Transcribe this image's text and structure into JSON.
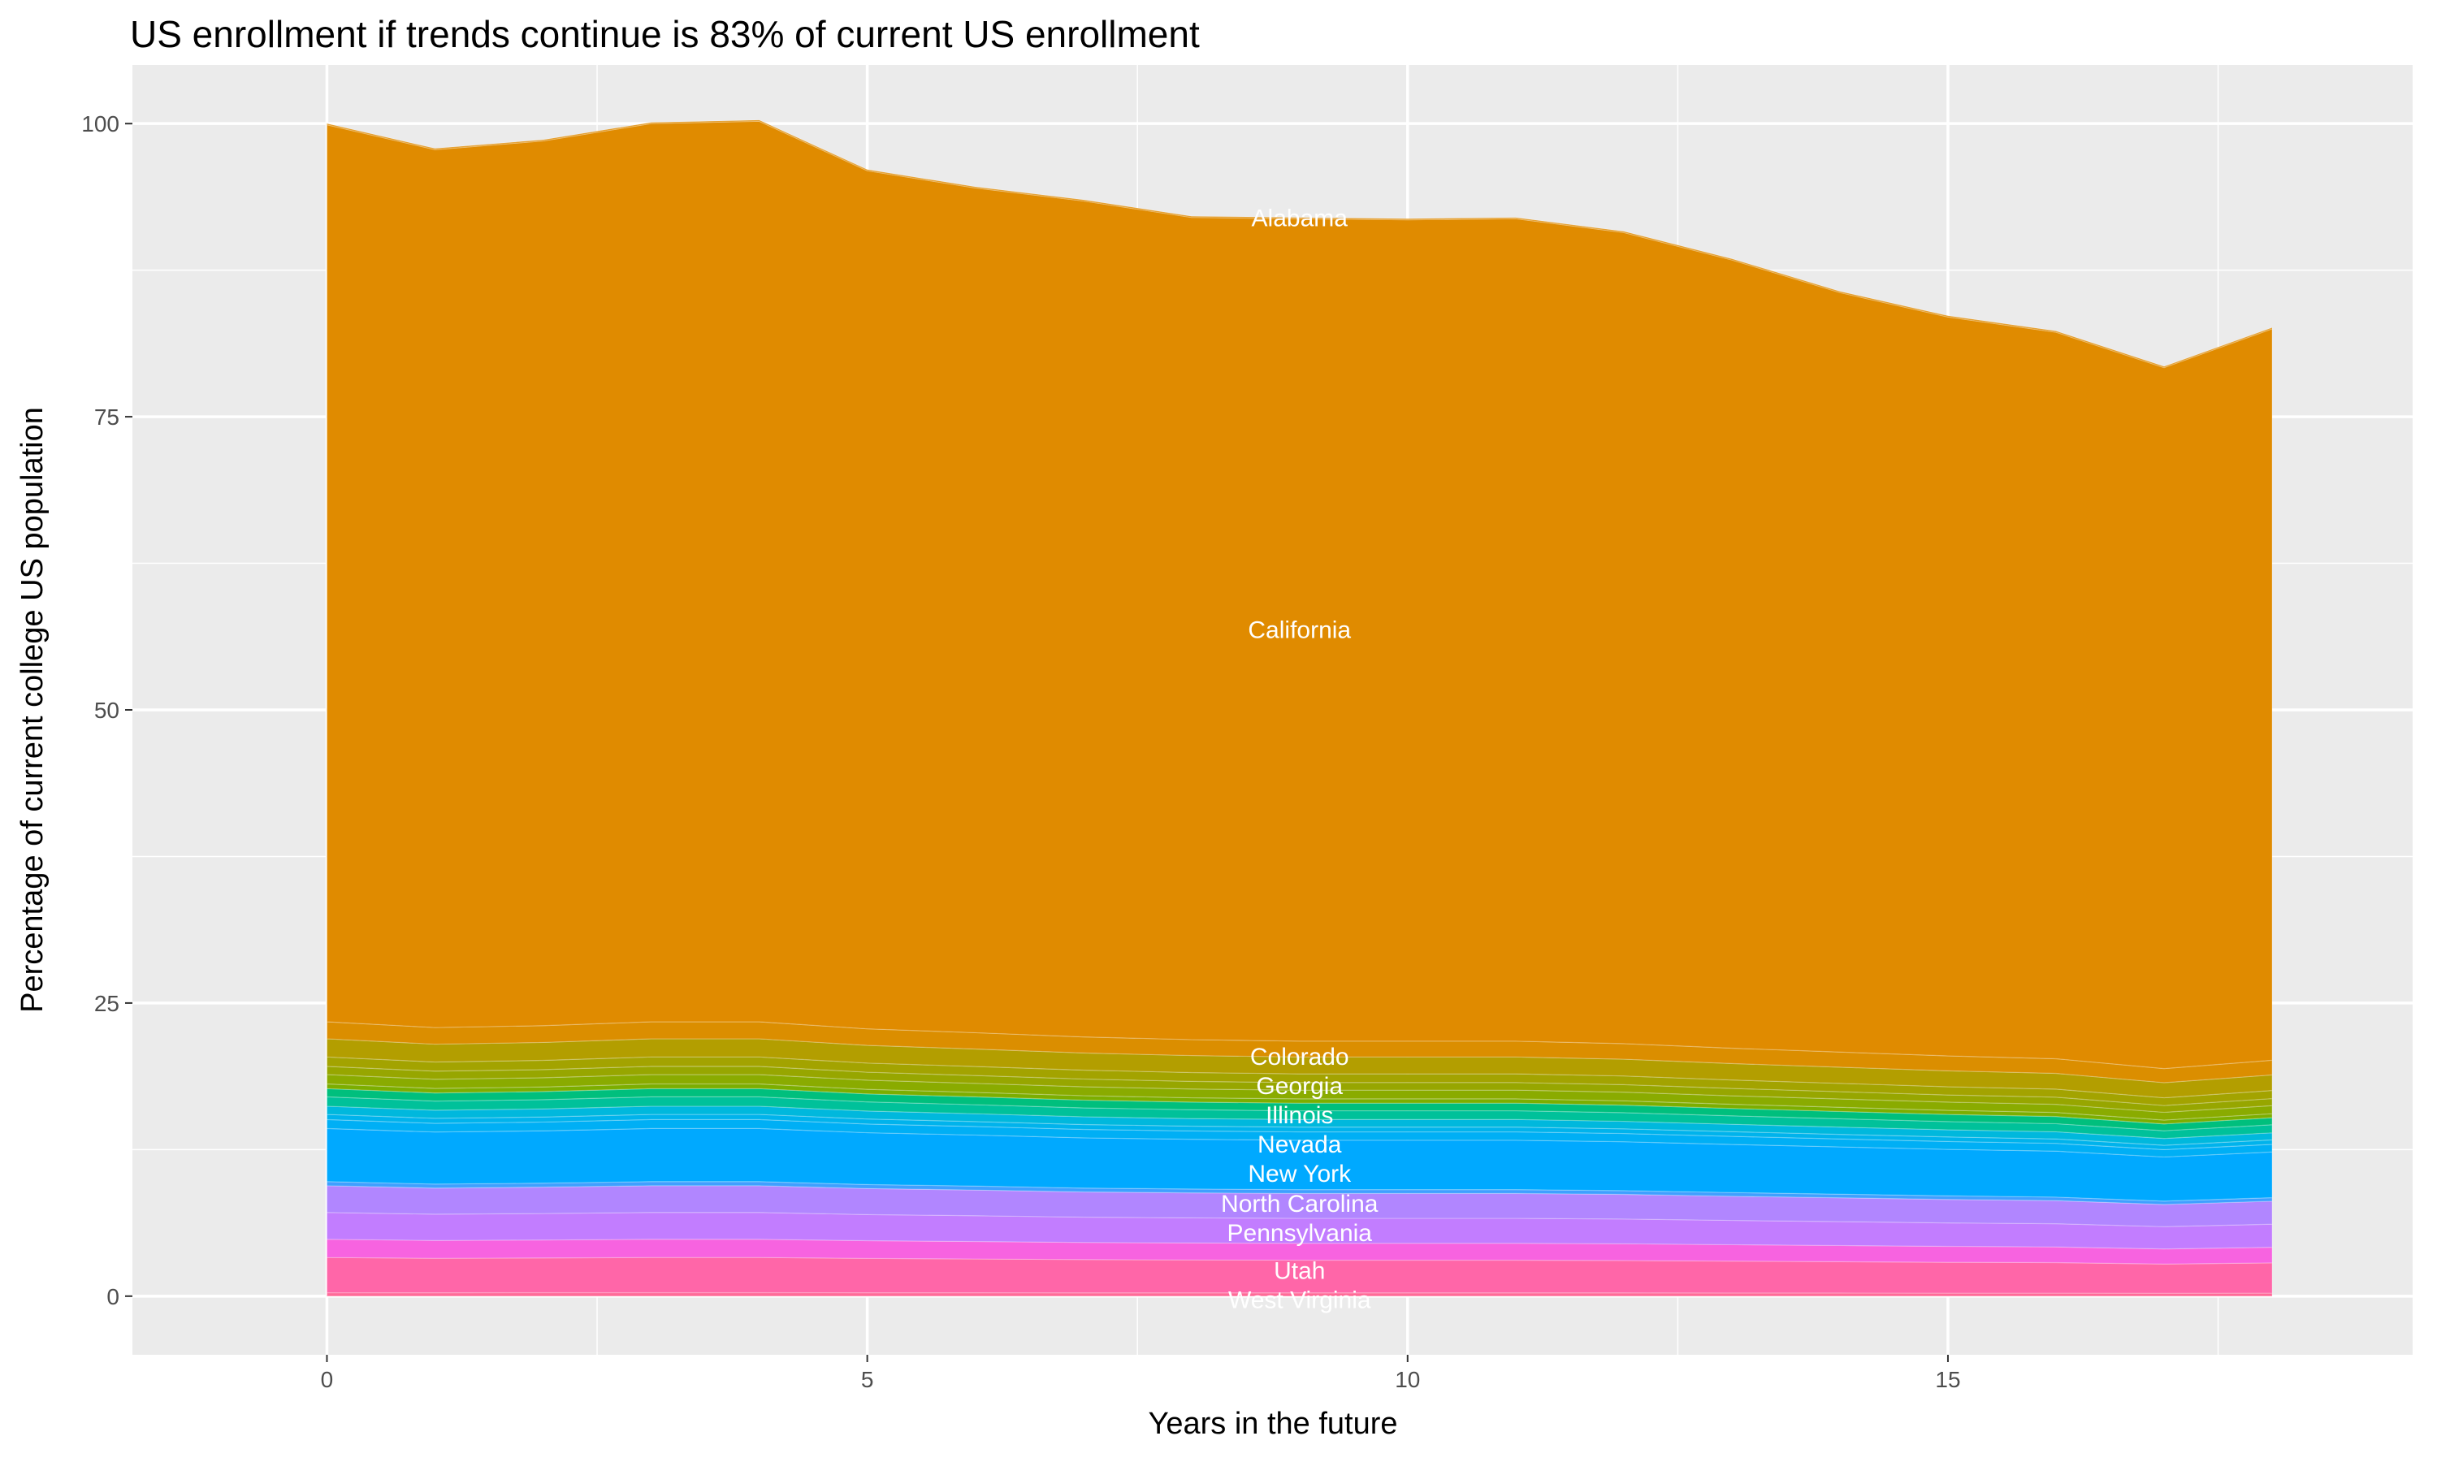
{
  "chart_data": {
    "type": "area",
    "stacked": true,
    "title": "US enrollment if trends continue is 83% of current US enrollment",
    "xlabel": "Years in the future",
    "ylabel": "Percentage of current college US population",
    "xlim": [
      -1.8,
      19.3
    ],
    "ylim": [
      -5,
      105
    ],
    "x_ticks": [
      0,
      5,
      10,
      15
    ],
    "y_ticks": [
      0,
      25,
      50,
      75,
      100
    ],
    "grid": true,
    "legend": "none",
    "label_x": 9,
    "x": [
      0,
      1,
      2,
      3,
      4,
      5,
      6,
      7,
      8,
      9,
      10,
      11,
      12,
      13,
      14,
      15,
      16,
      17,
      18
    ],
    "series": [
      {
        "name": "West Virginia",
        "color": "#FF6A98",
        "values": [
          0.3,
          0.29,
          0.3,
          0.3,
          0.3,
          0.29,
          0.29,
          0.28,
          0.28,
          0.28,
          0.28,
          0.28,
          0.28,
          0.27,
          0.27,
          0.26,
          0.26,
          0.25,
          0.26
        ]
      },
      {
        "name": "Utah",
        "color": "#FF66A8",
        "values": [
          3,
          2.94,
          2.96,
          3,
          3,
          2.93,
          2.88,
          2.84,
          2.81,
          2.79,
          2.79,
          2.79,
          2.76,
          2.72,
          2.67,
          2.63,
          2.6,
          2.49,
          2.58
        ]
      },
      {
        "color": "#F763E0",
        "values": [
          1.55,
          1.52,
          1.53,
          1.55,
          1.55,
          1.51,
          1.49,
          1.46,
          1.45,
          1.44,
          1.44,
          1.44,
          1.43,
          1.4,
          1.38,
          1.36,
          1.34,
          1.29,
          1.33
        ]
      },
      {
        "name": "Pennsylvania",
        "color": "#C27DFF",
        "values": [
          2.29,
          2.24,
          2.26,
          2.29,
          2.29,
          2.23,
          2.2,
          2.16,
          2.14,
          2.13,
          2.13,
          2.13,
          2.11,
          2.07,
          2.04,
          2.0,
          1.98,
          1.9,
          1.97
        ]
      },
      {
        "name": "North Carolina",
        "color": "#B186FF",
        "values": [
          2.28,
          2.23,
          2.25,
          2.28,
          2.28,
          2.22,
          2.19,
          2.15,
          2.13,
          2.12,
          2.12,
          2.12,
          2.1,
          2.06,
          2.03,
          2.0,
          1.97,
          1.89,
          1.96
        ]
      },
      {
        "color": "#3FA0FF",
        "values": [
          0.35,
          0.34,
          0.34,
          0.35,
          0.35,
          0.34,
          0.34,
          0.33,
          0.33,
          0.33,
          0.33,
          0.33,
          0.32,
          0.32,
          0.31,
          0.31,
          0.3,
          0.29,
          0.3
        ]
      },
      {
        "name": "New York",
        "color": "#00A9FF",
        "values": [
          4.53,
          4.44,
          4.46,
          4.53,
          4.53,
          4.42,
          4.35,
          4.28,
          4.24,
          4.21,
          4.21,
          4.21,
          4.17,
          4.1,
          4.03,
          3.96,
          3.92,
          3.76,
          3.9
        ]
      },
      {
        "name": "Nevada",
        "color": "#00AFF5",
        "values": [
          0.76,
          0.74,
          0.75,
          0.76,
          0.76,
          0.74,
          0.73,
          0.72,
          0.71,
          0.71,
          0.71,
          0.71,
          0.7,
          0.69,
          0.68,
          0.67,
          0.66,
          0.63,
          0.65
        ]
      },
      {
        "color": "#00B3EC",
        "values": [
          0.44,
          0.43,
          0.43,
          0.44,
          0.44,
          0.43,
          0.42,
          0.42,
          0.41,
          0.41,
          0.41,
          0.41,
          0.4,
          0.4,
          0.39,
          0.39,
          0.38,
          0.37,
          0.38
        ]
      },
      {
        "color": "#00B8DD",
        "values": [
          0.7,
          0.69,
          0.69,
          0.7,
          0.7,
          0.68,
          0.67,
          0.66,
          0.65,
          0.65,
          0.65,
          0.65,
          0.64,
          0.63,
          0.62,
          0.61,
          0.61,
          0.58,
          0.6
        ]
      },
      {
        "name": "Illinois",
        "color": "#00C19A",
        "values": [
          0.8,
          0.78,
          0.79,
          0.8,
          0.8,
          0.78,
          0.77,
          0.76,
          0.75,
          0.74,
          0.74,
          0.74,
          0.74,
          0.72,
          0.71,
          0.7,
          0.69,
          0.66,
          0.69
        ]
      },
      {
        "color": "#00BF7D",
        "values": [
          0.7,
          0.69,
          0.69,
          0.7,
          0.7,
          0.68,
          0.67,
          0.66,
          0.65,
          0.65,
          0.65,
          0.65,
          0.64,
          0.63,
          0.62,
          0.61,
          0.61,
          0.58,
          0.6
        ]
      },
      {
        "color": "#7CAE00",
        "values": [
          0.4,
          0.39,
          0.39,
          0.4,
          0.4,
          0.39,
          0.38,
          0.38,
          0.37,
          0.37,
          0.37,
          0.37,
          0.37,
          0.36,
          0.36,
          0.35,
          0.35,
          0.33,
          0.34
        ]
      },
      {
        "name": "Georgia",
        "color": "#8AAB00",
        "values": [
          0.8,
          0.78,
          0.79,
          0.8,
          0.8,
          0.78,
          0.77,
          0.76,
          0.75,
          0.74,
          0.74,
          0.74,
          0.74,
          0.72,
          0.71,
          0.7,
          0.69,
          0.66,
          0.69
        ]
      },
      {
        "color": "#97A600",
        "values": [
          0.7,
          0.69,
          0.69,
          0.7,
          0.7,
          0.68,
          0.67,
          0.66,
          0.65,
          0.65,
          0.65,
          0.65,
          0.64,
          0.63,
          0.62,
          0.61,
          0.61,
          0.58,
          0.6
        ]
      },
      {
        "color": "#A3A300",
        "values": [
          0.8,
          0.78,
          0.79,
          0.8,
          0.8,
          0.78,
          0.77,
          0.76,
          0.75,
          0.74,
          0.74,
          0.74,
          0.74,
          0.72,
          0.71,
          0.7,
          0.69,
          0.66,
          0.69
        ]
      },
      {
        "name": "Colorado",
        "color": "#B39E00",
        "values": [
          1.55,
          1.52,
          1.53,
          1.55,
          1.55,
          1.51,
          1.49,
          1.46,
          1.45,
          1.44,
          1.44,
          1.44,
          1.43,
          1.4,
          1.38,
          1.36,
          1.34,
          1.29,
          1.33
        ]
      },
      {
        "color": "#DB8E00",
        "values": [
          1.45,
          1.42,
          1.43,
          1.45,
          1.45,
          1.41,
          1.39,
          1.37,
          1.36,
          1.35,
          1.35,
          1.35,
          1.33,
          1.31,
          1.29,
          1.27,
          1.25,
          1.2,
          1.25
        ]
      },
      {
        "name": "California",
        "color": "#E08B00",
        "values": [
          76.5,
          74.87,
          75.45,
          76.6,
          76.8,
          73.18,
          72.04,
          71.29,
          70.12,
          70.14,
          70.04,
          70.14,
          69.17,
          67.22,
          64.77,
          63.02,
          61.96,
          59.78,
          62.38
        ]
      },
      {
        "name": "Alabama",
        "color": "#E08B00",
        "values": [
          0.1,
          0.1,
          0.1,
          0.1,
          0.1,
          0.1,
          0.1,
          0.1,
          0.1,
          0.1,
          0.1,
          0.1,
          0.1,
          0.1,
          0.1,
          0.1,
          0.1,
          0.1,
          0.1
        ]
      }
    ]
  }
}
